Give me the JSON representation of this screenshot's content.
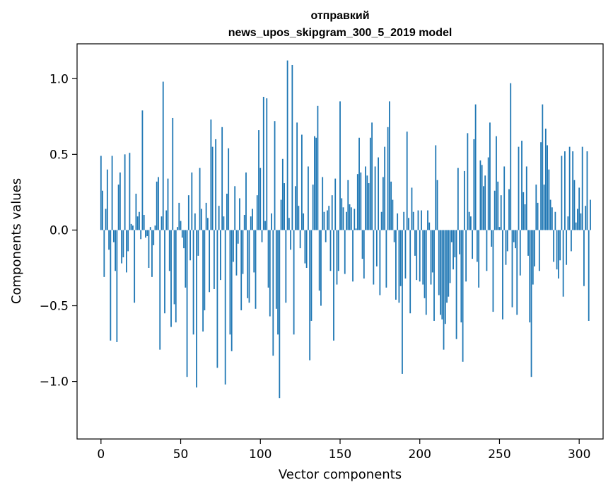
{
  "chart_data": {
    "type": "bar",
    "title": "отправкий",
    "subtitle": "news_upos_skipgram_300_5_2019 model",
    "xlabel": "Vector components",
    "ylabel": "Components values",
    "xlim": [
      -15,
      315
    ],
    "ylim": [
      -1.38,
      1.23
    ],
    "x_ticks": [
      {
        "value": 0,
        "label": "0"
      },
      {
        "value": 50,
        "label": "50"
      },
      {
        "value": 100,
        "label": "100"
      },
      {
        "value": 150,
        "label": "150"
      },
      {
        "value": 200,
        "label": "200"
      },
      {
        "value": 250,
        "label": "250"
      },
      {
        "value": 300,
        "label": "300"
      }
    ],
    "y_ticks": [
      {
        "value": -1.0,
        "label": "−1.0"
      },
      {
        "value": -0.5,
        "label": "−0.5"
      },
      {
        "value": 0.0,
        "label": "0.0"
      },
      {
        "value": 0.5,
        "label": "0.5"
      },
      {
        "value": 1.0,
        "label": "1.0"
      }
    ],
    "grid": false,
    "bar_color": "#1f77b4",
    "values": [
      0.49,
      0.26,
      -0.31,
      0.14,
      0.4,
      -0.13,
      -0.73,
      0.49,
      -0.08,
      -0.27,
      -0.74,
      0.3,
      0.38,
      -0.22,
      -0.18,
      0.5,
      -0.28,
      -0.14,
      0.51,
      0.04,
      0.03,
      -0.48,
      0.24,
      0.09,
      0.12,
      -0.06,
      0.79,
      0.1,
      -0.05,
      -0.04,
      -0.25,
      0.02,
      -0.31,
      -0.1,
      0.03,
      0.32,
      0.35,
      -0.79,
      0.09,
      0.98,
      -0.55,
      0.13,
      0.34,
      -0.27,
      -0.64,
      0.74,
      -0.49,
      -0.61,
      0.02,
      0.18,
      0.06,
      -0.05,
      -0.12,
      -0.38,
      -0.97,
      0.23,
      -0.2,
      0.38,
      -0.69,
      0.11,
      -1.04,
      -0.17,
      0.41,
      0.14,
      -0.67,
      -0.53,
      0.18,
      0.08,
      -0.41,
      0.73,
      0.55,
      -0.39,
      0.6,
      -0.91,
      0.16,
      -0.33,
      0.68,
      0.09,
      -1.02,
      0.24,
      0.54,
      -0.69,
      -0.8,
      -0.21,
      0.29,
      -0.3,
      -0.09,
      0.21,
      -0.53,
      -0.29,
      0.1,
      0.38,
      -0.45,
      -0.48,
      0.09,
      0.14,
      -0.28,
      -0.52,
      0.23,
      0.66,
      0.41,
      -0.08,
      0.88,
      0.06,
      0.87,
      -0.38,
      -0.57,
      0.11,
      -0.83,
      0.72,
      -0.52,
      -0.69,
      -1.11,
      0.2,
      0.47,
      0.31,
      -0.48,
      1.12,
      0.08,
      -0.13,
      1.09,
      -0.69,
      0.29,
      0.71,
      0.16,
      -0.12,
      0.63,
      0.11,
      -0.22,
      -0.25,
      0.42,
      -0.86,
      -0.6,
      0.3,
      0.62,
      0.61,
      0.82,
      -0.4,
      -0.5,
      0.35,
      0.12,
      -0.08,
      0.13,
      0.16,
      -0.27,
      0.23,
      -0.73,
      0.34,
      -0.36,
      -0.27,
      0.85,
      0.21,
      0.15,
      -0.29,
      0.12,
      0.33,
      0.17,
      0.15,
      -0.34,
      0.14,
      0.01,
      0.37,
      0.61,
      0.38,
      -0.19,
      -0.32,
      0.42,
      0.36,
      0.31,
      0.61,
      0.71,
      -0.36,
      0.42,
      -0.24,
      0.48,
      -0.43,
      0.12,
      0.35,
      0.55,
      -0.38,
      0.68,
      0.85,
      0.32,
      0.2,
      -0.08,
      -0.46,
      0.11,
      -0.48,
      -0.37,
      -0.95,
      0.12,
      -0.32,
      0.65,
      0.08,
      -0.55,
      0.28,
      0.12,
      -0.17,
      -0.33,
      0.13,
      -0.34,
      0.13,
      -0.36,
      -0.45,
      -0.56,
      0.13,
      0.05,
      -0.36,
      -0.28,
      -0.6,
      0.56,
      0.33,
      -0.43,
      -0.56,
      -0.59,
      -0.79,
      -0.62,
      -0.48,
      -0.44,
      -0.35,
      -0.08,
      -0.26,
      -0.18,
      -0.72,
      0.41,
      -0.16,
      -0.61,
      -0.87,
      0.39,
      -0.34,
      0.64,
      0.12,
      0.09,
      -0.19,
      0.6,
      0.83,
      -0.21,
      -0.38,
      0.46,
      0.43,
      0.29,
      0.36,
      -0.27,
      0.48,
      0.71,
      -0.11,
      -0.54,
      0.26,
      0.62,
      0.32,
      0.02,
      0.23,
      -0.59,
      0.42,
      -0.23,
      -0.14,
      0.27,
      0.97,
      -0.51,
      -0.08,
      -0.12,
      -0.56,
      0.55,
      -0.3,
      0.59,
      0.25,
      0.17,
      0.42,
      -0.17,
      -0.61,
      -0.97,
      -0.36,
      -0.24,
      0.3,
      0.18,
      -0.27,
      0.58,
      0.83,
      0.3,
      0.67,
      0.56,
      0.4,
      0.2,
      0.15,
      -0.21,
      0.12,
      -0.26,
      -0.32,
      -0.2,
      0.49,
      -0.44,
      0.52,
      -0.23,
      0.09,
      0.55,
      -0.14,
      0.52,
      0.33,
      0.05,
      0.14,
      0.28,
      0.11,
      0.55,
      -0.37,
      0.16,
      0.52,
      -0.6,
      0.2
    ]
  }
}
